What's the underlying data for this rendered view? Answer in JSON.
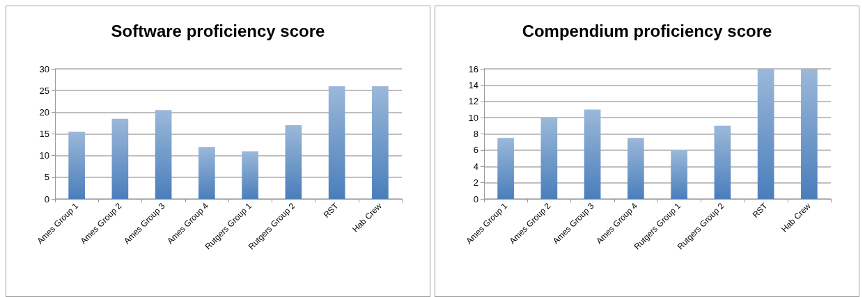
{
  "chart_data": [
    {
      "type": "bar",
      "title": "Software proficiency score",
      "categories": [
        "Ames Group 1",
        "Ames Group 2",
        "Ames Group 3",
        "Ames Group 4",
        "Rutgers Group 1",
        "Rutgers Group 2",
        "RST",
        "Hab Crew"
      ],
      "values": [
        15.5,
        18.5,
        20.5,
        12,
        11,
        17,
        26,
        26
      ],
      "color": "#4a7ebb",
      "ylim": [
        0,
        30
      ],
      "yticks": [
        0,
        5,
        10,
        15,
        20,
        25,
        30
      ],
      "grid": "y"
    },
    {
      "type": "bar",
      "title": "Compendium proficiency score",
      "categories": [
        "Ames Group 1",
        "Ames Group 2",
        "Ames Group 3",
        "Ames Group 4",
        "Rutgers Group 1",
        "Rutgers Group 2",
        "RST",
        "Hab Crew"
      ],
      "values": [
        7.5,
        10,
        11,
        7.5,
        6,
        9,
        16,
        16
      ],
      "color": "#4a7ebb",
      "ylim": [
        0,
        16
      ],
      "yticks": [
        0,
        2,
        4,
        6,
        8,
        10,
        12,
        14,
        16
      ],
      "grid": "y"
    }
  ]
}
